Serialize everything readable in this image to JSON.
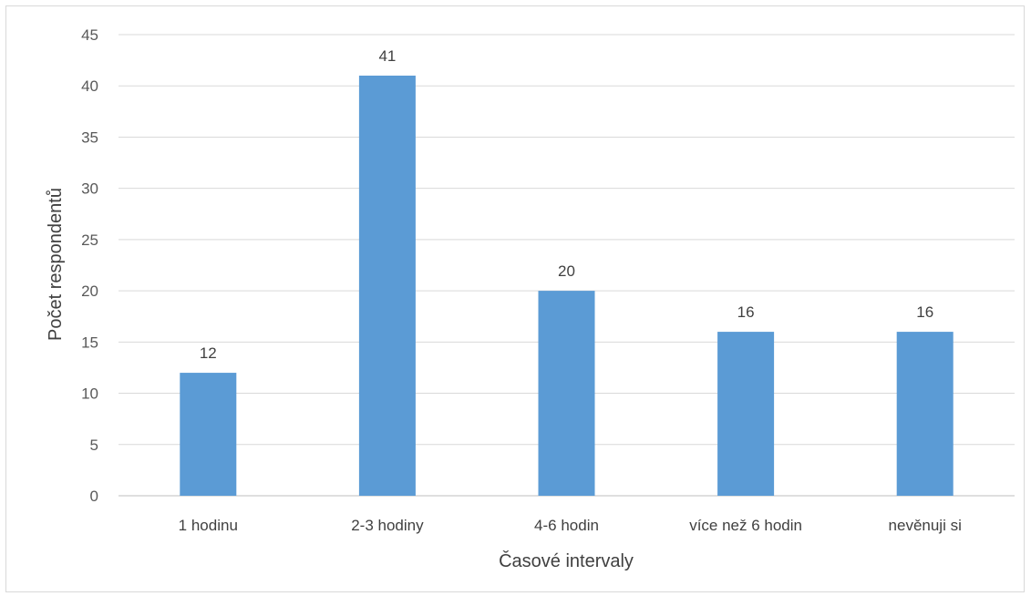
{
  "chart_data": {
    "type": "bar",
    "categories": [
      "1 hodinu",
      "2-3 hodiny",
      "4-6 hodin",
      "více než 6 hodin",
      "nevěnuji si"
    ],
    "values": [
      12,
      41,
      20,
      16,
      16
    ],
    "xlabel": "Časové intervaly",
    "ylabel": "Počet respondentů",
    "ylim": [
      0,
      45
    ],
    "yticks": [
      0,
      5,
      10,
      15,
      20,
      25,
      30,
      35,
      40,
      45
    ],
    "grid": true,
    "data_labels": true,
    "bar_color": "#5b9bd5",
    "grid_color": "#d9d9d9"
  }
}
